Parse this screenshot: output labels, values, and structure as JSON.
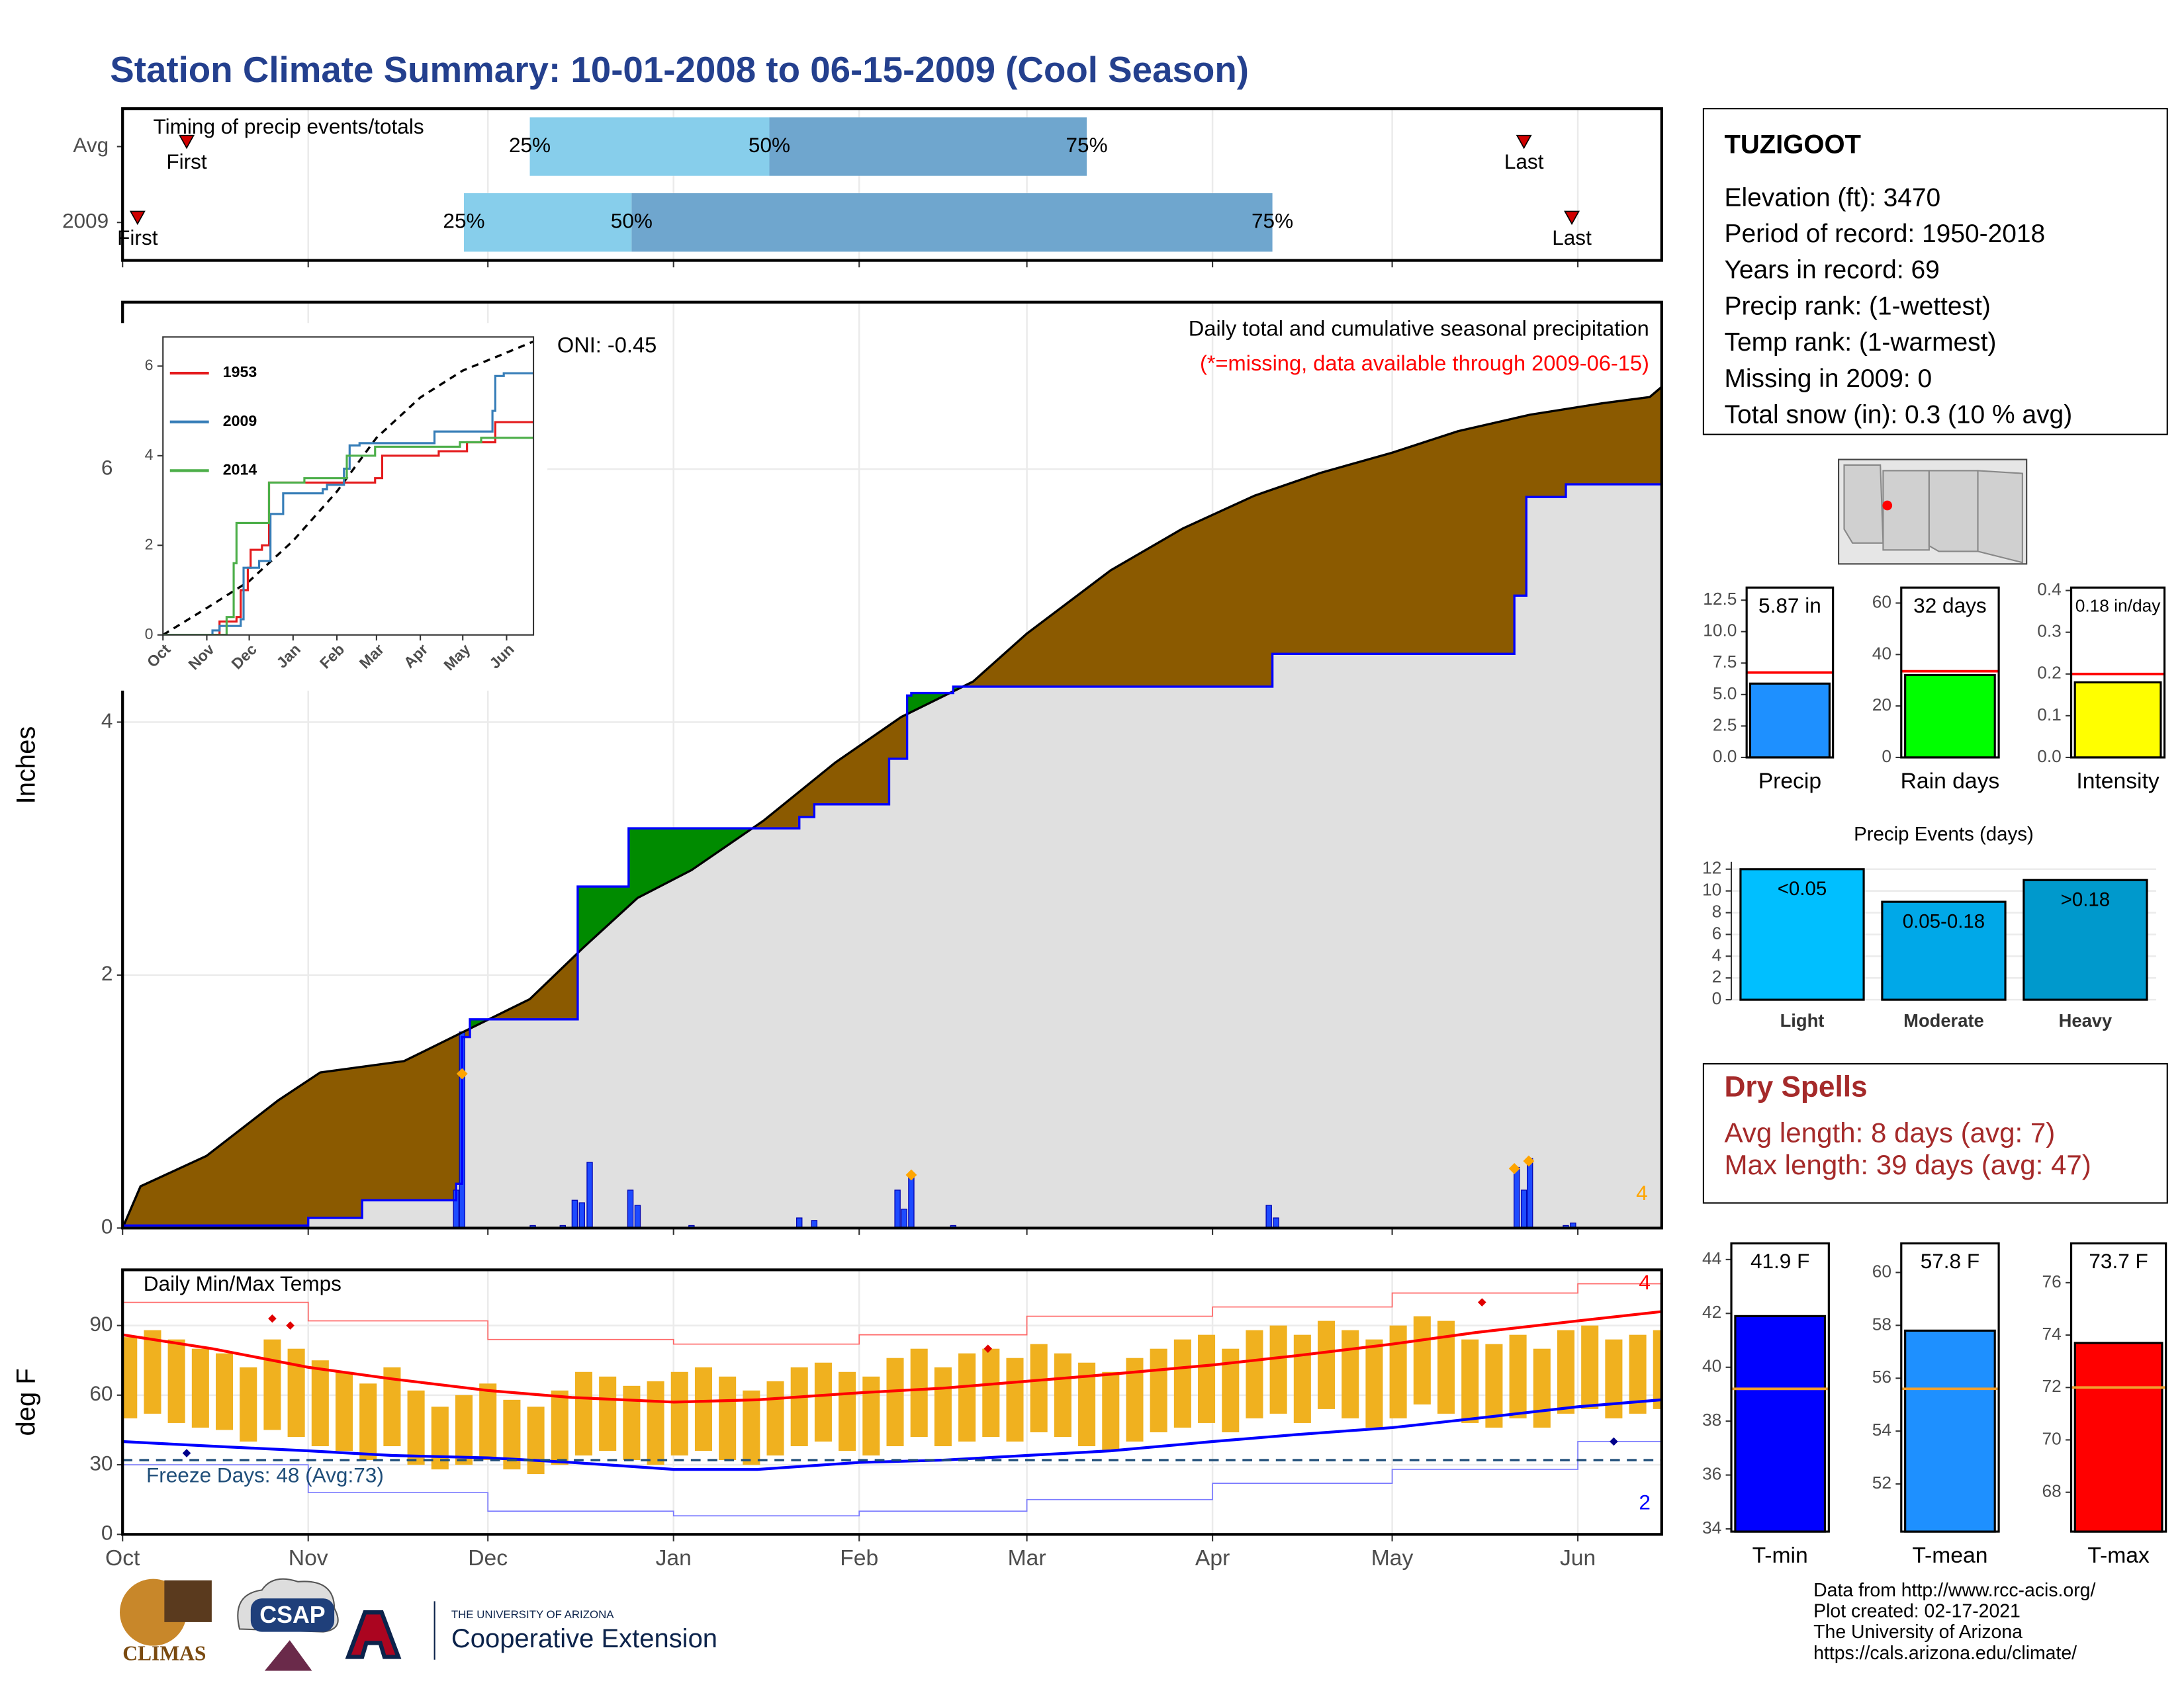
{
  "page_title": "Station Climate Summary: 10-01-2008 to 06-15-2009 (Cool Season)",
  "station": {
    "name": "TUZIGOOT",
    "lines": [
      "Elevation (ft): 3470",
      "Period of record: 1950-2018",
      "Years in record: 69",
      "Precip rank:  (1-wettest)",
      "Temp rank:  (1-warmest)",
      "Missing in 2009: 0",
      "Total snow (in): 0.3 (10 % avg)"
    ]
  },
  "dry_spells": {
    "title": "Dry Spells",
    "lines": [
      "Avg length: 8 days (avg: 7)",
      "Max length: 39 days (avg: 47)"
    ]
  },
  "footer": {
    "credits": [
      "Data from http://www.rcc-acis.org/",
      "Plot created: 02-17-2021",
      "The University of Arizona",
      "https://cals.arizona.edu/climate/"
    ],
    "logos": [
      "CLIMAS",
      "CSAP",
      "THE UNIVERSITY OF ARIZONA",
      "Cooperative Extension"
    ]
  },
  "chart_data": [
    {
      "type": "timeline",
      "title": "Timing of precip events/totals",
      "categories": [
        "Avg",
        "2009"
      ],
      "rows": [
        {
          "first": 10.7,
          "p25": 68,
          "p50": 108,
          "p75": 161,
          "last": 234
        },
        {
          "first": 2.5,
          "p25": 57,
          "p50": 85,
          "p75": 192,
          "last": 242
        }
      ],
      "marker_labels": {
        "first": "First",
        "p25": "25%",
        "p50": "50%",
        "p75": "75%",
        "last": "Last"
      },
      "colors": {
        "p25": "#87ceeb",
        "p50": "#6fa6ce",
        "marker": "#d00000"
      },
      "xlim": [
        0,
        257
      ],
      "xticks": [
        0,
        31,
        61,
        92,
        123,
        151,
        182,
        212,
        243
      ],
      "grid": true
    },
    {
      "type": "step",
      "title": "Daily total and cumulative seasonal precipitation",
      "subtitle": "(*=missing, data available through 2009-06-15)",
      "annotation": "ONI: -0.45",
      "corner_label": "4",
      "ylabel": "Inches",
      "xlim": [
        0,
        257
      ],
      "ylim": [
        0,
        7.32
      ],
      "yticks": [
        0,
        2,
        4,
        6
      ],
      "xticks": [
        0,
        31,
        61,
        92,
        123,
        151,
        182,
        212,
        243
      ],
      "grid": true,
      "average": {
        "color": "#000000",
        "x": [
          0,
          3,
          14,
          26,
          33,
          47,
          56,
          68,
          77,
          86,
          95,
          107,
          119,
          130,
          142,
          151,
          165,
          177,
          189,
          200,
          212,
          223,
          235,
          247,
          255,
          257
        ],
        "values": [
          0,
          0.33,
          0.57,
          1.01,
          1.23,
          1.32,
          1.53,
          1.81,
          2.22,
          2.61,
          2.83,
          3.22,
          3.68,
          4.04,
          4.32,
          4.7,
          5.2,
          5.53,
          5.79,
          5.97,
          6.13,
          6.3,
          6.43,
          6.52,
          6.57,
          6.65
        ]
      },
      "observed": {
        "color": "#0000ff",
        "x": [
          0,
          31,
          40,
          55.7,
          56.7,
          58,
          76,
          84.5,
          113,
          115.5,
          128,
          131,
          131.7,
          138.7,
          192,
          232.4,
          234.4,
          241,
          257
        ],
        "values": [
          0.02,
          0.08,
          0.22,
          0.35,
          1.51,
          1.65,
          2.7,
          3.16,
          3.25,
          3.35,
          3.71,
          4.21,
          4.23,
          4.28,
          4.54,
          5.0,
          5.78,
          5.88,
          5.88
        ]
      },
      "daily": {
        "color": "#1e4bff",
        "x": [
          55.7,
          56.7,
          68.5,
          73.5,
          75.5,
          76.7,
          78,
          84.8,
          86,
          95,
          113,
          115.5,
          129.4,
          130.5,
          131.7,
          138.7,
          191.4,
          192.6,
          232.8,
          234,
          235,
          241,
          242.2
        ],
        "values": [
          0.3,
          1.55,
          0.02,
          0.02,
          0.22,
          0.2,
          0.52,
          0.3,
          0.18,
          0.02,
          0.08,
          0.06,
          0.3,
          0.15,
          0.42,
          0.02,
          0.18,
          0.08,
          0.48,
          0.3,
          0.55,
          0.02,
          0.04
        ]
      },
      "records": {
        "color": "#ffa500",
        "x": [
          56.7,
          131.7,
          232.4,
          234.8
        ],
        "values": [
          1.22,
          0.42,
          0.47,
          0.53
        ]
      },
      "deficit_color": "#8b5a00",
      "surplus_color": "#008b00",
      "base_color": "#e0e0e0",
      "subtitle_color": "#ff0000"
    },
    {
      "type": "line",
      "xlim": [
        0,
        262
      ],
      "ylim": [
        0,
        6.65
      ],
      "yticks": [
        0,
        2,
        4,
        6
      ],
      "xticks": [
        {
          "value": 0,
          "label": "Oct"
        },
        {
          "value": 31,
          "label": "Nov"
        },
        {
          "value": 61,
          "label": "Dec"
        },
        {
          "value": 92,
          "label": "Jan"
        },
        {
          "value": 123,
          "label": "Feb"
        },
        {
          "value": 151,
          "label": "Mar"
        },
        {
          "value": 182,
          "label": "Apr"
        },
        {
          "value": 212,
          "label": "May"
        },
        {
          "value": 243,
          "label": "Jun"
        }
      ],
      "series": [
        {
          "name": "1953",
          "color": "#e41a1c",
          "x": [
            0,
            40,
            52,
            55,
            60,
            62,
            70,
            75,
            150,
            155,
            195,
            215,
            235,
            262
          ],
          "values": [
            0,
            0.3,
            0.4,
            1.0,
            1.5,
            1.9,
            2.0,
            3.4,
            3.5,
            4.0,
            4.1,
            4.3,
            4.75,
            4.75
          ]
        },
        {
          "name": "2009",
          "color": "#377eb8",
          "x": [
            0,
            35,
            40,
            55,
            57,
            68,
            76,
            85,
            113,
            116,
            128,
            132,
            139,
            192,
            232,
            233,
            235,
            241,
            262
          ],
          "values": [
            0,
            0.1,
            0.2,
            0.35,
            1.5,
            1.65,
            2.7,
            3.16,
            3.25,
            3.35,
            3.71,
            4.23,
            4.28,
            4.54,
            4.54,
            5.0,
            5.78,
            5.84,
            5.84
          ]
        },
        {
          "name": "2014",
          "color": "#4daf4a",
          "x": [
            0,
            45,
            50,
            52,
            55,
            68,
            75,
            100,
            130,
            150,
            200,
            210,
            225,
            262
          ],
          "values": [
            0,
            0.4,
            1.6,
            2.5,
            2.5,
            2.5,
            3.4,
            3.5,
            4.0,
            4.2,
            4.2,
            4.3,
            4.4,
            4.4
          ]
        }
      ],
      "reference": {
        "color": "#000000",
        "x": [
          0,
          31,
          61,
          92,
          123,
          151,
          182,
          212,
          243,
          262
        ],
        "values": [
          0,
          0.6,
          1.2,
          2.1,
          3.2,
          4.4,
          5.3,
          5.9,
          6.3,
          6.55
        ]
      },
      "legend": "top-left"
    },
    {
      "type": "floating_bar",
      "title": "Daily Min/Max Temps",
      "ylabel": "deg F",
      "xlim": [
        0,
        257
      ],
      "ylim": [
        0,
        114
      ],
      "yticks": [
        0,
        30,
        60,
        90
      ],
      "xticks": [
        {
          "value": 0,
          "label": "Oct"
        },
        {
          "value": 31,
          "label": "Nov"
        },
        {
          "value": 61,
          "label": "Dec"
        },
        {
          "value": 92,
          "label": "Jan"
        },
        {
          "value": 123,
          "label": "Feb"
        },
        {
          "value": 151,
          "label": "Mar"
        },
        {
          "value": 182,
          "label": "Apr"
        },
        {
          "value": 212,
          "label": "May"
        },
        {
          "value": 243,
          "label": "Jun"
        }
      ],
      "grid": true,
      "color": "#f0b11f",
      "x": [
        1,
        5,
        9,
        13,
        17,
        21,
        25,
        29,
        33,
        37,
        41,
        45,
        49,
        53,
        57,
        61,
        65,
        69,
        73,
        77,
        81,
        85,
        89,
        93,
        97,
        101,
        105,
        109,
        113,
        117,
        121,
        125,
        129,
        133,
        137,
        141,
        145,
        149,
        153,
        157,
        161,
        165,
        169,
        173,
        177,
        181,
        185,
        189,
        193,
        197,
        201,
        205,
        209,
        213,
        217,
        221,
        225,
        229,
        233,
        237,
        241,
        245,
        249,
        253,
        257
      ],
      "low": [
        50,
        52,
        48,
        46,
        45,
        40,
        45,
        42,
        38,
        36,
        32,
        38,
        30,
        28,
        30,
        32,
        28,
        26,
        30,
        34,
        36,
        32,
        30,
        34,
        36,
        32,
        30,
        34,
        38,
        40,
        36,
        34,
        38,
        42,
        38,
        40,
        42,
        40,
        44,
        42,
        38,
        36,
        40,
        44,
        46,
        48,
        44,
        50,
        52,
        48,
        54,
        50,
        46,
        50,
        56,
        52,
        48,
        46,
        50,
        46,
        52,
        54,
        50,
        52,
        54
      ],
      "high": [
        85,
        88,
        84,
        80,
        78,
        72,
        84,
        80,
        75,
        70,
        65,
        72,
        62,
        55,
        60,
        65,
        58,
        55,
        62,
        70,
        68,
        64,
        66,
        70,
        72,
        68,
        62,
        66,
        72,
        74,
        70,
        68,
        76,
        80,
        72,
        78,
        80,
        76,
        82,
        78,
        74,
        70,
        76,
        80,
        84,
        86,
        80,
        88,
        90,
        86,
        92,
        88,
        84,
        90,
        94,
        92,
        84,
        82,
        86,
        80,
        88,
        90,
        84,
        86,
        88
      ],
      "avg_high": {
        "color": "#ff0000",
        "x": [
          0,
          15,
          31,
          45,
          61,
          75,
          92,
          106,
          123,
          137,
          151,
          165,
          182,
          196,
          212,
          226,
          243,
          257
        ],
        "values": [
          86,
          80,
          72,
          67,
          62,
          59,
          57,
          58,
          61,
          63,
          66,
          69,
          73,
          77,
          82,
          87,
          92,
          96
        ]
      },
      "avg_low": {
        "color": "#0000ff",
        "x": [
          0,
          15,
          31,
          45,
          61,
          75,
          92,
          106,
          123,
          137,
          151,
          165,
          182,
          196,
          212,
          226,
          243,
          257
        ],
        "values": [
          40,
          38,
          36,
          34,
          33,
          31,
          28,
          28,
          31,
          32,
          34,
          36,
          40,
          43,
          46,
          50,
          55,
          58
        ]
      },
      "record_high": {
        "color": "#ff6666",
        "x": [
          0,
          31,
          61,
          92,
          123,
          151,
          182,
          212,
          243,
          257
        ],
        "values": [
          100,
          92,
          84,
          82,
          86,
          94,
          98,
          104,
          108,
          110
        ]
      },
      "record_low": {
        "color": "#7b7bff",
        "x": [
          0,
          31,
          61,
          92,
          123,
          151,
          182,
          212,
          243,
          257
        ],
        "values": [
          30,
          18,
          10,
          8,
          10,
          15,
          22,
          28,
          40,
          45
        ]
      },
      "high_markers": {
        "color": "#e00000",
        "x": [
          25,
          28,
          144.5,
          227
        ],
        "values": [
          93,
          90,
          80,
          100
        ]
      },
      "low_markers": {
        "color": "#00008b",
        "x": [
          10.7,
          249
        ],
        "values": [
          35,
          40
        ]
      },
      "freeze": {
        "value": 32,
        "label": "Freeze Days: 48 (Avg:73)",
        "color": "#1f4e79"
      },
      "corner_labels": [
        {
          "label": "4",
          "color": "#ff0000"
        },
        {
          "label": "2",
          "color": "#0000ff"
        }
      ]
    },
    {
      "type": "bar",
      "categories": [
        "Precip"
      ],
      "values": [
        5.87
      ],
      "value_labels": [
        "5.87 in"
      ],
      "color": "#1e90ff",
      "reference": 6.75,
      "reference_color": "#ff0000",
      "ylim": [
        0,
        13.5
      ],
      "yticks": [
        {
          "value": 0,
          "label": "0.0"
        },
        2.5,
        {
          "value": 5,
          "label": "5.0"
        },
        7.5,
        {
          "value": 10,
          "label": "10.0"
        },
        12.5
      ]
    },
    {
      "type": "bar",
      "categories": [
        "Rain days"
      ],
      "values": [
        32
      ],
      "value_labels": [
        "32 days"
      ],
      "color": "#00ff00",
      "reference": 33.5,
      "reference_color": "#ff0000",
      "ylim": [
        0,
        66
      ],
      "yticks": [
        0,
        20,
        40,
        60
      ]
    },
    {
      "type": "bar",
      "categories": [
        "Intensity"
      ],
      "values": [
        0.18
      ],
      "value_labels": [
        "0.18 in/day"
      ],
      "color": "#ffff00",
      "reference": 0.2,
      "reference_color": "#ff0000",
      "ylim": [
        0,
        0.407
      ],
      "yticks": [
        {
          "value": 0,
          "label": "0.0"
        },
        0.1,
        0.2,
        0.3,
        0.4
      ]
    },
    {
      "type": "bar",
      "title": "Precip Events (days)",
      "categories": [
        "Light",
        "Moderate",
        "Heavy"
      ],
      "values": [
        12,
        9,
        11
      ],
      "bar_labels": [
        "<0.05",
        "0.05-0.18",
        ">0.18"
      ],
      "colors": [
        "#00bfff",
        "#00a8e8",
        "#0099cc"
      ],
      "ylim": [
        0,
        12.67
      ],
      "yticks": [
        0,
        2,
        4,
        6,
        8,
        10,
        12
      ],
      "grid": true
    },
    {
      "type": "bar",
      "categories": [
        "T-min"
      ],
      "values": [
        41.9
      ],
      "value_labels": [
        "41.9 F"
      ],
      "color": "#0000ff",
      "reference": 39.2,
      "reference_color": "#f0a030",
      "ylim": [
        33.9,
        44.6
      ],
      "yticks": [
        34,
        36,
        38,
        40,
        42,
        44
      ]
    },
    {
      "type": "bar",
      "categories": [
        "T-mean"
      ],
      "values": [
        57.8
      ],
      "value_labels": [
        "57.8 F"
      ],
      "color": "#1e90ff",
      "reference": 55.6,
      "reference_color": "#f0a030",
      "ylim": [
        50.2,
        61.1
      ],
      "yticks": [
        52,
        54,
        56,
        58,
        60
      ]
    },
    {
      "type": "bar",
      "categories": [
        "T-max"
      ],
      "values": [
        73.7
      ],
      "value_labels": [
        "73.7 F"
      ],
      "color": "#ff0000",
      "reference": 72.0,
      "reference_color": "#f0a030",
      "ylim": [
        66.5,
        77.5
      ],
      "yticks": [
        68,
        70,
        72,
        74,
        76
      ]
    }
  ]
}
